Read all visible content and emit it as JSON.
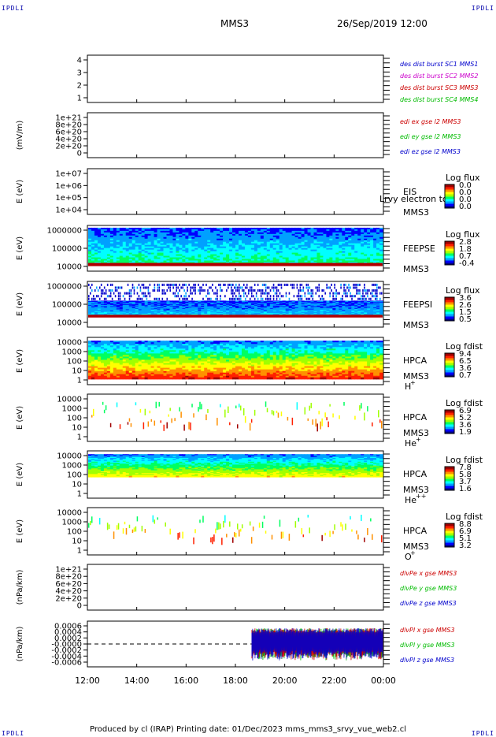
{
  "corner_text": "IPDLI",
  "header": {
    "spacecraft": "MMS3",
    "datetime": "26/Sep/2019 12:00"
  },
  "footer": {
    "text": "Produced by cl (IRAP)    Printing date: 01/Dec/2023    mms_mms3_srvy_vue_web2.cl"
  },
  "colors": {
    "spectrogram_ramp": [
      "#000080",
      "#0000ff",
      "#00a0ff",
      "#00ffff",
      "#00ff60",
      "#a0ff00",
      "#ffff00",
      "#ff9000",
      "#ff2000",
      "#a00000"
    ]
  },
  "chart_data": [
    {
      "type": "line",
      "name": "dist",
      "ylabel": "",
      "yticks": [
        "4",
        "3",
        "2",
        "1"
      ],
      "ylim": [
        0.5,
        4.5
      ],
      "legend": [
        {
          "text": "des dist burst SC1 MMS1",
          "color": "#0000cc"
        },
        {
          "text": "des dist burst SC2 MMS2",
          "color": "#cc00cc"
        },
        {
          "text": "des dist burst SC3 MMS3",
          "color": "#cc0000"
        },
        {
          "text": "des dist burst SC4 MMS4",
          "color": "#00bb00"
        }
      ]
    },
    {
      "type": "line",
      "name": "edi",
      "ylabel": "(mV/m)",
      "yticks": [
        "1e+21",
        "8e+20",
        "6e+20",
        "4e+20",
        "2e+20",
        "0"
      ],
      "ylim": [
        0,
        1e+21
      ],
      "zero_line": true,
      "legend": [
        {
          "text": "edi ex gse l2 MMS3",
          "color": "#cc0000"
        },
        {
          "text": "edi ey gse l2 MMS3",
          "color": "#00bb00"
        },
        {
          "text": "edi ez gse l2 MMS3",
          "color": "#0000cc"
        }
      ]
    },
    {
      "type": "heatmap",
      "name": "eis",
      "ylabel": "E (eV)",
      "yticks": [
        "1e+07",
        "1e+06",
        "1e+05",
        "1e+04"
      ],
      "instrument": "EIS",
      "sc": "MMS3",
      "extra": "Lrvy electron to",
      "cbar_title": "Log flux",
      "cbar_ticks": [
        "0.0",
        "0.0",
        "0.0",
        "0.0"
      ],
      "spectrum": null
    },
    {
      "type": "heatmap",
      "name": "feepse",
      "ylabel": "E (eV)",
      "yticks": [
        "1000000",
        "100000",
        "10000"
      ],
      "instrument": "FEEPSE",
      "sc": "MMS3",
      "cbar_title": "Log flux",
      "cbar_ticks": [
        "2.8",
        "1.8",
        "0.7",
        "-0.4"
      ],
      "spectrum": "feeps_e"
    },
    {
      "type": "heatmap",
      "name": "feepsi",
      "ylabel": "E (eV)",
      "yticks": [
        "1000000",
        "100000",
        "10000"
      ],
      "instrument": "FEEPSI",
      "sc": "MMS3",
      "cbar_title": "Log flux",
      "cbar_ticks": [
        "3.6",
        "2.6",
        "1.5",
        "0.5"
      ],
      "spectrum": "feeps_i"
    },
    {
      "type": "heatmap",
      "name": "hpca-h",
      "ylabel": "E (eV)",
      "yticks": [
        "10000",
        "1000",
        "100",
        "10",
        "1"
      ],
      "instrument": "HPCA",
      "sc": "MMS3",
      "species": "H",
      "species_sup": "+",
      "cbar_title": "Log fdist",
      "cbar_ticks": [
        "9.4",
        "6.5",
        "3.6",
        "0.7"
      ],
      "spectrum": "hpca_h"
    },
    {
      "type": "heatmap",
      "name": "hpca-he",
      "ylabel": "E (eV)",
      "yticks": [
        "10000",
        "1000",
        "100",
        "10",
        "1"
      ],
      "instrument": "HPCA",
      "sc": "MMS3",
      "species": "He",
      "species_sup": "+",
      "cbar_title": "Log fdist",
      "cbar_ticks": [
        "6.9",
        "5.2",
        "3.6",
        "1.9"
      ],
      "spectrum": "sparse_he"
    },
    {
      "type": "heatmap",
      "name": "hpca-hepp",
      "ylabel": "E (eV)",
      "yticks": [
        "10000",
        "1000",
        "100",
        "10",
        "1"
      ],
      "instrument": "HPCA",
      "sc": "MMS3",
      "species": "He",
      "species_sup": "++",
      "cbar_title": "Log fdist",
      "cbar_ticks": [
        "7.8",
        "5.8",
        "3.7",
        "1.6"
      ],
      "spectrum": "hpca_hepp"
    },
    {
      "type": "heatmap",
      "name": "hpca-o",
      "ylabel": "E (eV)",
      "yticks": [
        "10000",
        "1000",
        "100",
        "10",
        "1"
      ],
      "instrument": "HPCA",
      "sc": "MMS3",
      "species": "O",
      "species_sup": "+",
      "cbar_title": "Log fdist",
      "cbar_ticks": [
        "8.8",
        "6.9",
        "5.1",
        "3.2"
      ],
      "spectrum": "sparse_o"
    },
    {
      "type": "line",
      "name": "divpe",
      "ylabel": "(nPa/km)",
      "yticks": [
        "1e+21",
        "8e+20",
        "6e+20",
        "4e+20",
        "2e+20",
        "0"
      ],
      "ylim": [
        0,
        1e+21
      ],
      "zero_line": true,
      "legend": [
        {
          "text": "dlvPe x gse MMS3",
          "color": "#cc0000"
        },
        {
          "text": "dlvPe y gse MMS3",
          "color": "#00bb00"
        },
        {
          "text": "dlvPe z gse MMS3",
          "color": "#0000cc"
        }
      ]
    },
    {
      "type": "line",
      "name": "divpi",
      "ylabel": "(nPa/km)",
      "yticks": [
        "0.0006",
        "0.0004",
        "0.0002",
        "-0.0000",
        "-0.0002",
        "-0.0004",
        "-0.0006"
      ],
      "ylim": [
        -0.0007,
        0.0007
      ],
      "zero_line": true,
      "data_start": "18:40",
      "legend": [
        {
          "text": "dlvPl x gse MMS3",
          "color": "#cc0000"
        },
        {
          "text": "dlvPl y gse MMS3",
          "color": "#00bb00"
        },
        {
          "text": "dlvPl z gse MMS3",
          "color": "#0000cc"
        }
      ]
    }
  ],
  "x_axis": {
    "ticks": [
      "12:00",
      "14:00",
      "16:00",
      "18:00",
      "20:00",
      "22:00",
      "00:00"
    ],
    "range_hours": [
      12,
      24
    ]
  }
}
